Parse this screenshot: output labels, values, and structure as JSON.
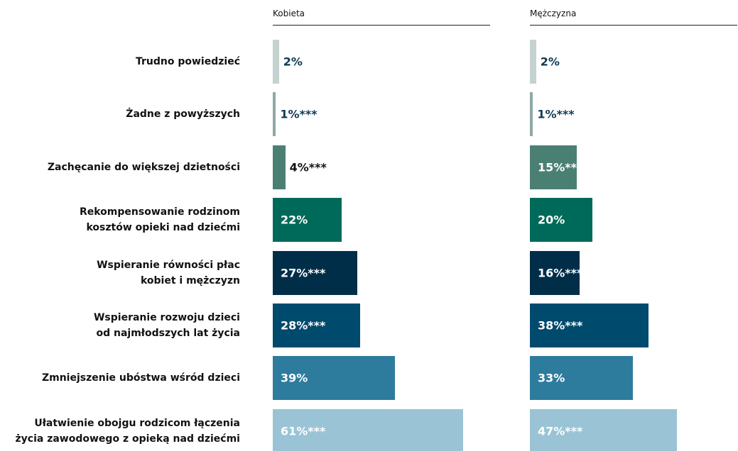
{
  "chart_data": {
    "type": "bar",
    "orientation": "horizontal",
    "categories": [
      "Trudno powiedzieć",
      "Żadne z powyższych",
      "Zachęcanie do większej dzietności",
      "Rekompensowanie rodzinom\nkosztów opieki nad dziećmi",
      "Wspieranie równości płac\nkobiet i mężczyzn",
      "Wspieranie rozwoju dzieci\nod najmłodszych lat życia",
      "Zmniejszenie ubóstwa wśród dzieci",
      "Ułatwienie obojgu rodzicom łączenia\nżycia zawodowego z opieką nad dziećmi"
    ],
    "colors": [
      "#c5d3d0",
      "#8fa9a5",
      "#4a8073",
      "#006a5a",
      "#002e49",
      "#004a6e",
      "#2d7c9e",
      "#9ac4d6"
    ],
    "series": [
      {
        "name": "Kobieta",
        "values": [
          2,
          1,
          4,
          22,
          27,
          28,
          39,
          61
        ],
        "value_labels": [
          "2%",
          "1%***",
          "4%***",
          "22%",
          "27%***",
          "28%***",
          "39%",
          "61%***"
        ]
      },
      {
        "name": "Mężczyzna",
        "values": [
          2,
          1,
          15,
          20,
          16,
          38,
          33,
          47
        ],
        "value_labels": [
          "2%",
          "1%***",
          "15%***",
          "20%",
          "16%***",
          "38%***",
          "33%",
          "47%***"
        ]
      }
    ]
  }
}
